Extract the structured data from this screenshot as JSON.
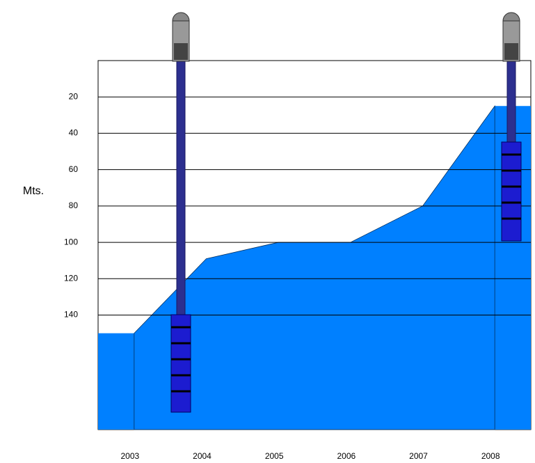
{
  "chart_data": {
    "type": "area",
    "y_label": "Mts.",
    "categories": [
      "2003",
      "2004",
      "2005",
      "2006",
      "2007",
      "2008"
    ],
    "values": [
      150,
      109,
      100,
      100,
      80,
      25
    ],
    "color": "#0080ff",
    "ylim": [
      0,
      203
    ],
    "yticks": [
      20,
      40,
      60,
      80,
      100,
      120,
      140
    ],
    "y_inverted": true,
    "grid": true
  }
}
